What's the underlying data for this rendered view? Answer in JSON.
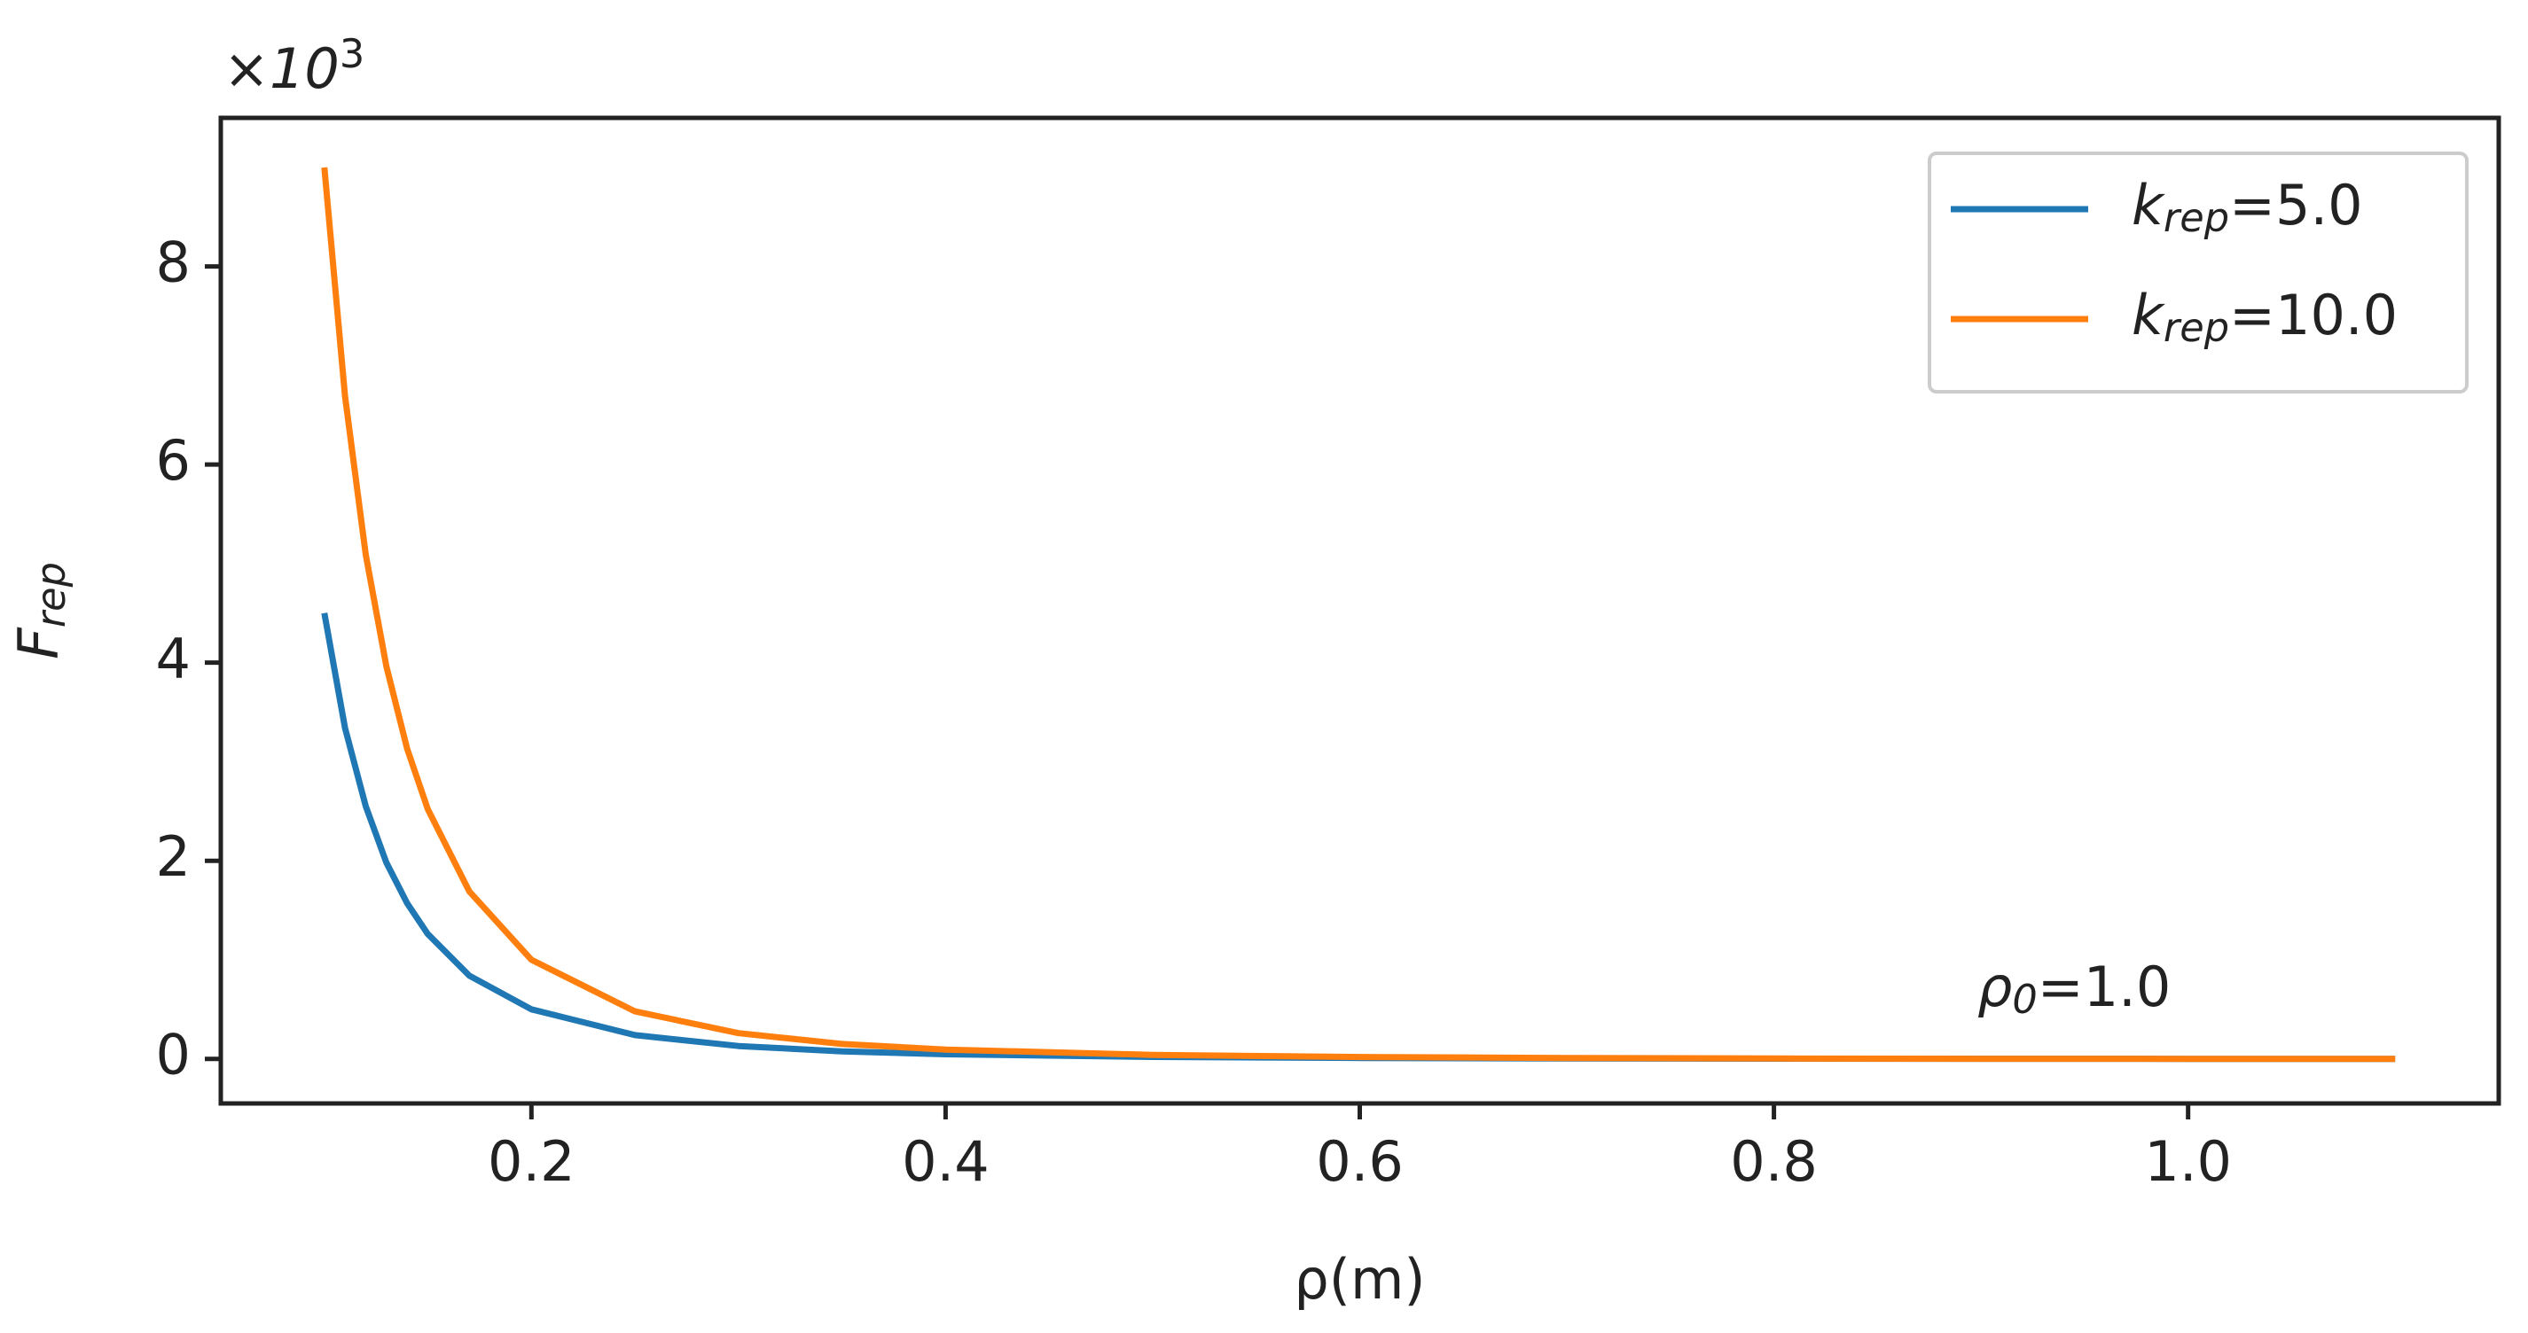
{
  "chart_data": {
    "type": "line",
    "xlabel": "ρ(m)",
    "ylabel": "F_rep",
    "y_offset_label": "×10^3",
    "annotation": "ρ_0=1.0",
    "x": [
      0.1,
      0.11,
      0.12,
      0.13,
      0.14,
      0.15,
      0.17,
      0.2,
      0.25,
      0.3,
      0.35,
      0.4,
      0.5,
      0.6,
      0.7,
      0.8,
      0.9,
      1.0,
      1.1
    ],
    "series": [
      {
        "name": "k_rep=5.0",
        "color": "#1f77b4",
        "values": [
          4.5,
          3.34,
          2.55,
          1.98,
          1.57,
          1.26,
          0.84,
          0.5,
          0.24,
          0.13,
          0.076,
          0.047,
          0.02,
          0.009,
          0.004,
          0.002,
          0.001,
          0,
          0
        ]
      },
      {
        "name": "k_rep=10.0",
        "color": "#ff7f0e",
        "values": [
          9.0,
          6.69,
          5.09,
          3.96,
          3.13,
          2.52,
          1.69,
          1.0,
          0.48,
          0.26,
          0.15,
          0.094,
          0.04,
          0.019,
          0.009,
          0.004,
          0.001,
          0,
          0
        ]
      }
    ],
    "xlim": [
      0.05,
      1.15
    ],
    "ylim": [
      -0.45,
      9.5
    ],
    "xticks": [
      0.2,
      0.4,
      0.6,
      0.8,
      {
        "value": 1.0,
        "label": "1.0"
      }
    ],
    "yticks": [
      0,
      2,
      4,
      6,
      8
    ],
    "legend": "upper right",
    "grid": false
  }
}
